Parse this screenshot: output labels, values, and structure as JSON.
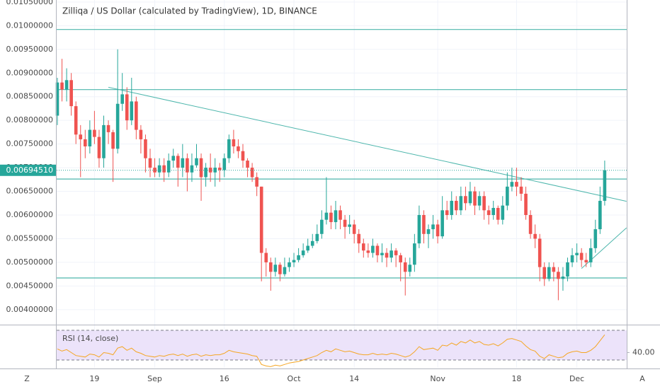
{
  "chart_data": {
    "type": "candlestick",
    "title": "Zilliqa / US Dollar (calculated by TradingView), 1D, BINANCE",
    "up_color": "#26a69a",
    "down_color": "#ef5350",
    "line_color": "#4db6ac",
    "grid": true,
    "categories": [
      null,
      null,
      null,
      null,
      null,
      null,
      null,
      null,
      "19",
      null,
      null,
      null,
      null,
      null,
      null,
      null,
      null,
      null,
      null,
      null,
      null,
      "Sep",
      null,
      null,
      null,
      null,
      null,
      null,
      null,
      null,
      null,
      null,
      null,
      null,
      null,
      null,
      "16",
      null,
      null,
      null,
      null,
      null,
      null,
      null,
      null,
      null,
      null,
      null,
      null,
      null,
      null,
      "Oct",
      null,
      null,
      null,
      null,
      null,
      null,
      null,
      null,
      null,
      null,
      null,
      null,
      "14",
      null,
      null,
      null,
      null,
      null,
      null,
      null,
      null,
      null,
      null,
      null,
      null,
      null,
      null,
      null,
      null,
      null,
      "Nov",
      null,
      null,
      null,
      null,
      null,
      null,
      null,
      null,
      null,
      null,
      null,
      null,
      null,
      null,
      null,
      null,
      "18",
      null,
      null,
      null,
      null,
      null,
      null,
      null,
      null,
      null,
      null,
      null,
      null,
      "Dec",
      null,
      null,
      null,
      null,
      null,
      null
    ],
    "ohlc": [
      [
        0.0081,
        0.0089,
        0.0079,
        0.0088
      ],
      [
        0.0088,
        0.0093,
        0.0084,
        0.00865
      ],
      [
        0.00865,
        0.0091,
        0.0084,
        0.00885
      ],
      [
        0.00885,
        0.009,
        0.0081,
        0.0083
      ],
      [
        0.0083,
        0.0084,
        0.0075,
        0.0077
      ],
      [
        0.0077,
        0.0079,
        0.0068,
        0.0076
      ],
      [
        0.0076,
        0.0078,
        0.0072,
        0.00745
      ],
      [
        0.00745,
        0.008,
        0.0073,
        0.0078
      ],
      [
        0.0078,
        0.0082,
        0.0075,
        0.00765
      ],
      [
        0.00765,
        0.0078,
        0.007,
        0.0072
      ],
      [
        0.0072,
        0.0081,
        0.007,
        0.0079
      ],
      [
        0.0079,
        0.008,
        0.0075,
        0.00775
      ],
      [
        0.00775,
        0.0078,
        0.0067,
        0.0074
      ],
      [
        0.0074,
        0.0095,
        0.0073,
        0.00835
      ],
      [
        0.00835,
        0.009,
        0.0082,
        0.00855
      ],
      [
        0.00855,
        0.0087,
        0.0078,
        0.008
      ],
      [
        0.008,
        0.0089,
        0.0079,
        0.0084
      ],
      [
        0.0084,
        0.0085,
        0.0076,
        0.0078
      ],
      [
        0.0078,
        0.0079,
        0.0073,
        0.0076
      ],
      [
        0.0076,
        0.0077,
        0.0069,
        0.0072
      ],
      [
        0.0072,
        0.0074,
        0.0068,
        0.007
      ],
      [
        0.007,
        0.0072,
        0.0068,
        0.0069
      ],
      [
        0.0069,
        0.0072,
        0.0068,
        0.00705
      ],
      [
        0.00705,
        0.0072,
        0.0067,
        0.0069
      ],
      [
        0.0069,
        0.0073,
        0.0068,
        0.00715
      ],
      [
        0.00715,
        0.0074,
        0.007,
        0.00725
      ],
      [
        0.00725,
        0.0073,
        0.0066,
        0.007
      ],
      [
        0.007,
        0.0075,
        0.0068,
        0.0072
      ],
      [
        0.0072,
        0.0073,
        0.0065,
        0.0069
      ],
      [
        0.0069,
        0.0073,
        0.0067,
        0.00705
      ],
      [
        0.00705,
        0.0075,
        0.007,
        0.0072
      ],
      [
        0.0072,
        0.0073,
        0.0063,
        0.0068
      ],
      [
        0.0068,
        0.0071,
        0.0066,
        0.007
      ],
      [
        0.007,
        0.0073,
        0.0067,
        0.0069
      ],
      [
        0.0069,
        0.0072,
        0.0066,
        0.007
      ],
      [
        0.007,
        0.0071,
        0.0067,
        0.00695
      ],
      [
        0.00695,
        0.0073,
        0.0068,
        0.0072
      ],
      [
        0.0072,
        0.0077,
        0.0071,
        0.0076
      ],
      [
        0.0076,
        0.0078,
        0.0073,
        0.00745
      ],
      [
        0.00745,
        0.0076,
        0.0072,
        0.00735
      ],
      [
        0.00735,
        0.0075,
        0.007,
        0.00715
      ],
      [
        0.00715,
        0.0072,
        0.0068,
        0.007
      ],
      [
        0.007,
        0.0071,
        0.0067,
        0.0068
      ],
      [
        0.0068,
        0.0069,
        0.0064,
        0.0066
      ],
      [
        0.0066,
        0.0066,
        0.0046,
        0.0052
      ],
      [
        0.0052,
        0.0053,
        0.0047,
        0.005
      ],
      [
        0.005,
        0.0051,
        0.0044,
        0.0048
      ],
      [
        0.0048,
        0.0051,
        0.0047,
        0.00495
      ],
      [
        0.00495,
        0.005,
        0.0046,
        0.00475
      ],
      [
        0.00475,
        0.0051,
        0.0047,
        0.0049
      ],
      [
        0.0049,
        0.0051,
        0.0048,
        0.005
      ],
      [
        0.005,
        0.0052,
        0.0049,
        0.00505
      ],
      [
        0.00505,
        0.0053,
        0.005,
        0.00515
      ],
      [
        0.00515,
        0.0054,
        0.0051,
        0.00525
      ],
      [
        0.00525,
        0.0055,
        0.0052,
        0.00535
      ],
      [
        0.00535,
        0.0056,
        0.0053,
        0.00545
      ],
      [
        0.00545,
        0.0058,
        0.0054,
        0.0056
      ],
      [
        0.0056,
        0.0061,
        0.0055,
        0.0059
      ],
      [
        0.0059,
        0.0068,
        0.0058,
        0.00605
      ],
      [
        0.00605,
        0.0062,
        0.0057,
        0.00585
      ],
      [
        0.00585,
        0.0063,
        0.0057,
        0.0061
      ],
      [
        0.0061,
        0.0062,
        0.0057,
        0.0059
      ],
      [
        0.0059,
        0.006,
        0.0055,
        0.00575
      ],
      [
        0.00575,
        0.006,
        0.0056,
        0.0058
      ],
      [
        0.0058,
        0.0059,
        0.0054,
        0.0056
      ],
      [
        0.0056,
        0.0057,
        0.0052,
        0.0054
      ],
      [
        0.0054,
        0.0055,
        0.0051,
        0.00525
      ],
      [
        0.00525,
        0.0054,
        0.0051,
        0.0052
      ],
      [
        0.0052,
        0.0055,
        0.0051,
        0.00535
      ],
      [
        0.00535,
        0.0054,
        0.005,
        0.00515
      ],
      [
        0.00515,
        0.0054,
        0.005,
        0.0052
      ],
      [
        0.0052,
        0.0053,
        0.0049,
        0.0051
      ],
      [
        0.0051,
        0.0054,
        0.005,
        0.00525
      ],
      [
        0.00525,
        0.0053,
        0.0049,
        0.00515
      ],
      [
        0.00515,
        0.0052,
        0.0046,
        0.005
      ],
      [
        0.005,
        0.0051,
        0.0043,
        0.0048
      ],
      [
        0.0048,
        0.0051,
        0.0047,
        0.00495
      ],
      [
        0.00495,
        0.0056,
        0.0048,
        0.0054
      ],
      [
        0.0054,
        0.0062,
        0.0053,
        0.006
      ],
      [
        0.006,
        0.0061,
        0.0054,
        0.0056
      ],
      [
        0.0056,
        0.0058,
        0.0053,
        0.0057
      ],
      [
        0.0057,
        0.006,
        0.0055,
        0.0058
      ],
      [
        0.0058,
        0.0059,
        0.0054,
        0.00555
      ],
      [
        0.00555,
        0.0064,
        0.0055,
        0.0061
      ],
      [
        0.0061,
        0.0063,
        0.0059,
        0.006
      ],
      [
        0.006,
        0.0065,
        0.0059,
        0.0063
      ],
      [
        0.0063,
        0.0064,
        0.006,
        0.0061
      ],
      [
        0.0061,
        0.0066,
        0.006,
        0.0064
      ],
      [
        0.0064,
        0.0066,
        0.0061,
        0.00625
      ],
      [
        0.00625,
        0.0067,
        0.0062,
        0.0065
      ],
      [
        0.0065,
        0.0066,
        0.006,
        0.0062
      ],
      [
        0.0062,
        0.0065,
        0.0061,
        0.0064
      ],
      [
        0.0064,
        0.0065,
        0.0059,
        0.0061
      ],
      [
        0.0061,
        0.0062,
        0.0058,
        0.006
      ],
      [
        0.006,
        0.0063,
        0.0059,
        0.00615
      ],
      [
        0.00615,
        0.0062,
        0.0058,
        0.0059
      ],
      [
        0.0059,
        0.0064,
        0.0058,
        0.0062
      ],
      [
        0.0062,
        0.0069,
        0.0061,
        0.0066
      ],
      [
        0.0066,
        0.007,
        0.0065,
        0.0067
      ],
      [
        0.0067,
        0.007,
        0.0064,
        0.0066
      ],
      [
        0.0066,
        0.0068,
        0.0063,
        0.00645
      ],
      [
        0.00645,
        0.0066,
        0.0059,
        0.006
      ],
      [
        0.006,
        0.0061,
        0.0055,
        0.0056
      ],
      [
        0.0056,
        0.0058,
        0.0053,
        0.0055
      ],
      [
        0.0055,
        0.0056,
        0.0046,
        0.0049
      ],
      [
        0.0049,
        0.005,
        0.0045,
        0.00465
      ],
      [
        0.00465,
        0.005,
        0.0046,
        0.0049
      ],
      [
        0.0049,
        0.005,
        0.0046,
        0.0048
      ],
      [
        0.0048,
        0.0049,
        0.0042,
        0.00465
      ],
      [
        0.00465,
        0.0049,
        0.0044,
        0.0047
      ],
      [
        0.0047,
        0.0051,
        0.0046,
        0.005
      ],
      [
        0.005,
        0.0053,
        0.0049,
        0.00515
      ],
      [
        0.00515,
        0.0054,
        0.005,
        0.0052
      ],
      [
        0.0052,
        0.0053,
        0.0049,
        0.00505
      ],
      [
        0.00505,
        0.0052,
        0.0049,
        0.005
      ],
      [
        0.005,
        0.0055,
        0.0049,
        0.0053
      ],
      [
        0.0053,
        0.0059,
        0.0052,
        0.0057
      ],
      [
        0.0057,
        0.0066,
        0.0056,
        0.0063
      ],
      [
        0.0063,
        0.00715,
        0.0062,
        0.0069451
      ]
    ],
    "last_price_label": "0.00694510",
    "ylim": [
      0.003684,
      0.010543
    ],
    "yticks": [
      {
        "value": 0.0105,
        "label": "0.01050000"
      },
      {
        "value": 0.01,
        "label": "0.01000000"
      },
      {
        "value": 0.0095,
        "label": "0.00950000"
      },
      {
        "value": 0.009,
        "label": "0.00900000"
      },
      {
        "value": 0.0085,
        "label": "0.00850000"
      },
      {
        "value": 0.008,
        "label": "0.00800000"
      },
      {
        "value": 0.0075,
        "label": "0.00750000"
      },
      {
        "value": 0.007,
        "label": "0.00700000"
      },
      {
        "value": 0.0065,
        "label": "0.00650000"
      },
      {
        "value": 0.006,
        "label": "0.00600000"
      },
      {
        "value": 0.0055,
        "label": "0.00550000"
      },
      {
        "value": 0.005,
        "label": "0.00500000"
      },
      {
        "value": 0.0045,
        "label": "0.00450000"
      },
      {
        "value": 0.004,
        "label": "0.00400000"
      }
    ],
    "hlines": [
      0.00992,
      0.00865,
      0.00676,
      0.00467
    ],
    "trendlines": [
      {
        "x": [
          11,
          122.7
        ],
        "y": [
          0.0087,
          0.00629
        ]
      },
      {
        "x": [
          113,
          122.7
        ],
        "y": [
          0.00487,
          0.00573
        ]
      }
    ],
    "rsi": {
      "title": "RSI (14, close)",
      "color": "#f5a623",
      "band": [
        30,
        70
      ],
      "ylim": [
        19.5,
        76.7
      ],
      "yticks": [
        {
          "value": 40,
          "label": "40.00"
        }
      ],
      "values": [
        45,
        42,
        44,
        40,
        36,
        35,
        34,
        38,
        37,
        34,
        40,
        39,
        37,
        46,
        48,
        43,
        46,
        41,
        39,
        36,
        35,
        34,
        36,
        35,
        37,
        38,
        36,
        38,
        35,
        37,
        38,
        35,
        37,
        36,
        37,
        37,
        39,
        43,
        41,
        40,
        39,
        38,
        36,
        35,
        24,
        22,
        21,
        23,
        22,
        24,
        26,
        27,
        28,
        30,
        32,
        34,
        36,
        40,
        43,
        41,
        45,
        43,
        41,
        42,
        40,
        38,
        37,
        37,
        39,
        37,
        38,
        37,
        39,
        38,
        36,
        34,
        36,
        41,
        48,
        44,
        45,
        46,
        43,
        50,
        49,
        53,
        50,
        55,
        53,
        57,
        53,
        55,
        51,
        50,
        52,
        49,
        53,
        58,
        59,
        57,
        55,
        49,
        44,
        42,
        35,
        32,
        37,
        35,
        33,
        34,
        39,
        41,
        42,
        40,
        40,
        43,
        48,
        56,
        64
      ]
    }
  },
  "ui": {
    "timezone_button": "Z",
    "auto_scale_button": "A"
  }
}
